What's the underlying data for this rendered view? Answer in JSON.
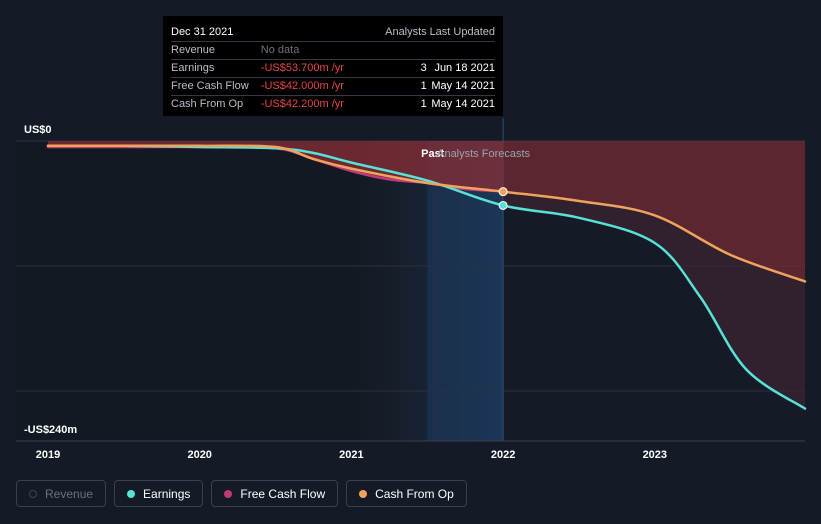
{
  "tooltip": {
    "date": "Dec 31 2021",
    "col_analysts": "Analysts",
    "col_updated": "Last Updated",
    "rows": [
      {
        "label": "Revenue",
        "value": "No data",
        "analysts": "",
        "updated": ""
      },
      {
        "label": "Earnings",
        "value": "-US$53.700m /yr",
        "analysts": "3",
        "updated": "Jun 18 2021"
      },
      {
        "label": "Free Cash Flow",
        "value": "-US$42.000m /yr",
        "analysts": "1",
        "updated": "May 14 2021"
      },
      {
        "label": "Cash From Op",
        "value": "-US$42.200m /yr",
        "analysts": "1",
        "updated": "May 14 2021"
      }
    ]
  },
  "chart_data": {
    "type": "line",
    "title": "",
    "ylabel": "",
    "y_top_label": "US$0",
    "y_bottom_label": "-US$240m",
    "ylim": [
      -240,
      0
    ],
    "xlim": [
      2019.0,
      2023.99
    ],
    "x_ticks": [
      2019,
      2020,
      2021,
      2022,
      2023
    ],
    "x_tick_labels": [
      "2019",
      "2020",
      "2021",
      "2022",
      "2023"
    ],
    "past_label": "Past",
    "forecast_label": "Analysts Forecasts",
    "divider_x": 2022.0,
    "series": [
      {
        "name": "Free Cash Flow",
        "color": "#c2387a",
        "points": [
          [
            2019.0,
            -5
          ],
          [
            2019.5,
            -5
          ],
          [
            2020.0,
            -5
          ],
          [
            2020.5,
            -6
          ],
          [
            2020.75,
            -15
          ],
          [
            2021.0,
            -25
          ],
          [
            2021.25,
            -32
          ],
          [
            2021.5,
            -35
          ],
          [
            2021.75,
            -40
          ],
          [
            2022.0,
            -42
          ]
        ]
      },
      {
        "name": "Earnings",
        "color": "#58e1d6",
        "points": [
          [
            2019.0,
            -4
          ],
          [
            2019.5,
            -4
          ],
          [
            2020.0,
            -5
          ],
          [
            2020.5,
            -6
          ],
          [
            2020.75,
            -10
          ],
          [
            2021.0,
            -18
          ],
          [
            2021.5,
            -33
          ],
          [
            2022.0,
            -53.7
          ],
          [
            2022.5,
            -64
          ],
          [
            2023.0,
            -85
          ],
          [
            2023.3,
            -130
          ],
          [
            2023.6,
            -190
          ],
          [
            2023.99,
            -223
          ]
        ]
      },
      {
        "name": "Cash From Op",
        "color": "#efa35c",
        "points": [
          [
            2019.0,
            -4
          ],
          [
            2019.5,
            -4
          ],
          [
            2020.0,
            -4
          ],
          [
            2020.5,
            -5
          ],
          [
            2020.75,
            -15
          ],
          [
            2021.0,
            -23
          ],
          [
            2021.5,
            -35
          ],
          [
            2022.0,
            -42.2
          ],
          [
            2022.5,
            -50
          ],
          [
            2023.0,
            -62
          ],
          [
            2023.5,
            -95
          ],
          [
            2023.99,
            -117
          ]
        ]
      }
    ],
    "highlight_points": [
      {
        "series": "Earnings",
        "x": 2022.0,
        "y": -53.7
      },
      {
        "series": "Cash From Op",
        "x": 2022.0,
        "y": -42.2
      }
    ]
  },
  "legend": [
    {
      "label": "Revenue",
      "color": "#2d4a60",
      "active": false
    },
    {
      "label": "Earnings",
      "color": "#58e1d6",
      "active": true
    },
    {
      "label": "Free Cash Flow",
      "color": "#c2387a",
      "active": true
    },
    {
      "label": "Cash From Op",
      "color": "#efa35c",
      "active": true
    }
  ]
}
